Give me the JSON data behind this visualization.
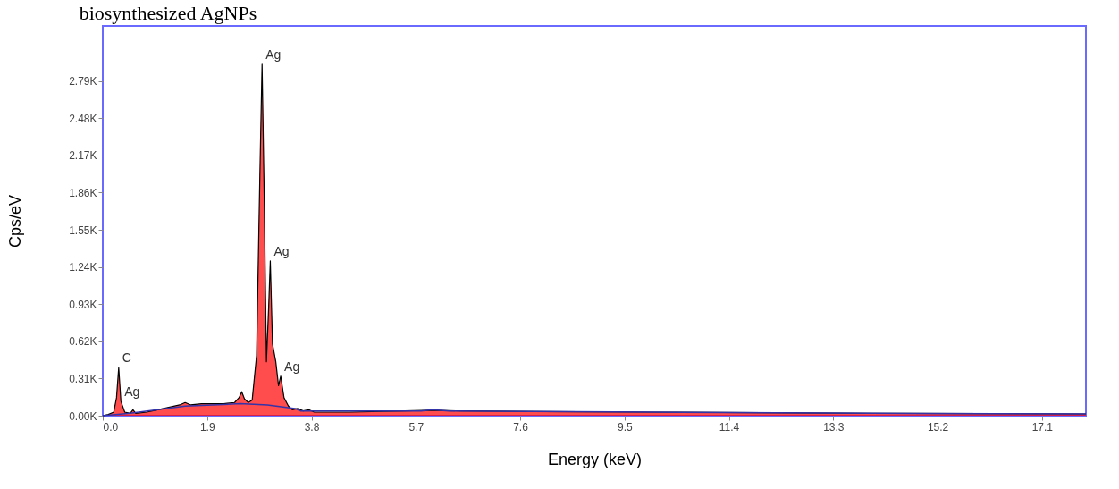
{
  "chart_data": {
    "type": "area",
    "title": "biosynthesized AgNPs",
    "xlabel": "Energy (keV)",
    "ylabel": "Cps/eV",
    "xlim": [
      0,
      17.9
    ],
    "xticks": [
      {
        "value": 0,
        "label": "0.0"
      },
      1.9,
      3.8,
      5.7,
      7.6,
      9.5,
      11.4,
      13.3,
      15.2,
      17.1
    ],
    "ylim": [
      0,
      3.25
    ],
    "yticks": [
      {
        "value": 0,
        "label": "0.00K"
      },
      {
        "value": 0.31,
        "label": "0.31K"
      },
      {
        "value": 0.62,
        "label": "0.62K"
      },
      {
        "value": 0.93,
        "label": "0.93K"
      },
      {
        "value": 1.24,
        "label": "1.24K"
      },
      {
        "value": 1.55,
        "label": "1.55K"
      },
      {
        "value": 1.86,
        "label": "1.86K"
      },
      {
        "value": 2.17,
        "label": "2.17K"
      },
      {
        "value": 2.48,
        "label": "2.48K"
      },
      {
        "value": 2.79,
        "label": "2.79K"
      }
    ],
    "grid": false,
    "series": [
      {
        "type": "area",
        "color": "#ff0000",
        "x": [
          0,
          0.1,
          0.2,
          0.25,
          0.29,
          0.33,
          0.4,
          0.5,
          0.55,
          0.6,
          0.8,
          1.0,
          1.2,
          1.4,
          1.5,
          1.6,
          1.8,
          2.0,
          2.2,
          2.4,
          2.48,
          2.53,
          2.58,
          2.65,
          2.72,
          2.8,
          2.86,
          2.9,
          2.94,
          2.98,
          3.02,
          3.05,
          3.09,
          3.15,
          3.2,
          3.24,
          3.3,
          3.38,
          3.45,
          3.55,
          3.65,
          3.75,
          3.85,
          4.5,
          5.5,
          6.0,
          6.5,
          8,
          10,
          12,
          14,
          16,
          17.9
        ],
        "values": [
          0,
          0.01,
          0.03,
          0.15,
          0.4,
          0.12,
          0.03,
          0.02,
          0.05,
          0.02,
          0.03,
          0.05,
          0.07,
          0.09,
          0.11,
          0.09,
          0.1,
          0.1,
          0.1,
          0.11,
          0.15,
          0.2,
          0.14,
          0.11,
          0.13,
          0.5,
          2.0,
          2.93,
          1.8,
          0.45,
          0.9,
          1.29,
          0.6,
          0.45,
          0.25,
          0.33,
          0.15,
          0.08,
          0.05,
          0.06,
          0.04,
          0.05,
          0.03,
          0.03,
          0.04,
          0.045,
          0.04,
          0.035,
          0.03,
          0.025,
          0.02,
          0.018,
          0.015
        ]
      },
      {
        "type": "line",
        "color": "#3333aa",
        "x": [
          0,
          0.5,
          1.0,
          1.5,
          2.0,
          2.5,
          3.0,
          3.5,
          3.6,
          5.8,
          6.0,
          6.3,
          10,
          14,
          17.9
        ],
        "values": [
          0,
          0.02,
          0.05,
          0.08,
          0.09,
          0.1,
          0.09,
          0.06,
          0.04,
          0.04,
          0.05,
          0.04,
          0.03,
          0.02,
          0.015
        ]
      }
    ],
    "annotations": [
      {
        "text": "C",
        "x": 0.29,
        "y": 0.4
      },
      {
        "text": "Ag",
        "x": 0.33,
        "y": 0.12
      },
      {
        "text": "Ag",
        "x": 2.9,
        "y": 2.93
      },
      {
        "text": "Ag",
        "x": 3.05,
        "y": 1.29
      },
      {
        "text": "Ag",
        "x": 3.24,
        "y": 0.33
      }
    ]
  }
}
